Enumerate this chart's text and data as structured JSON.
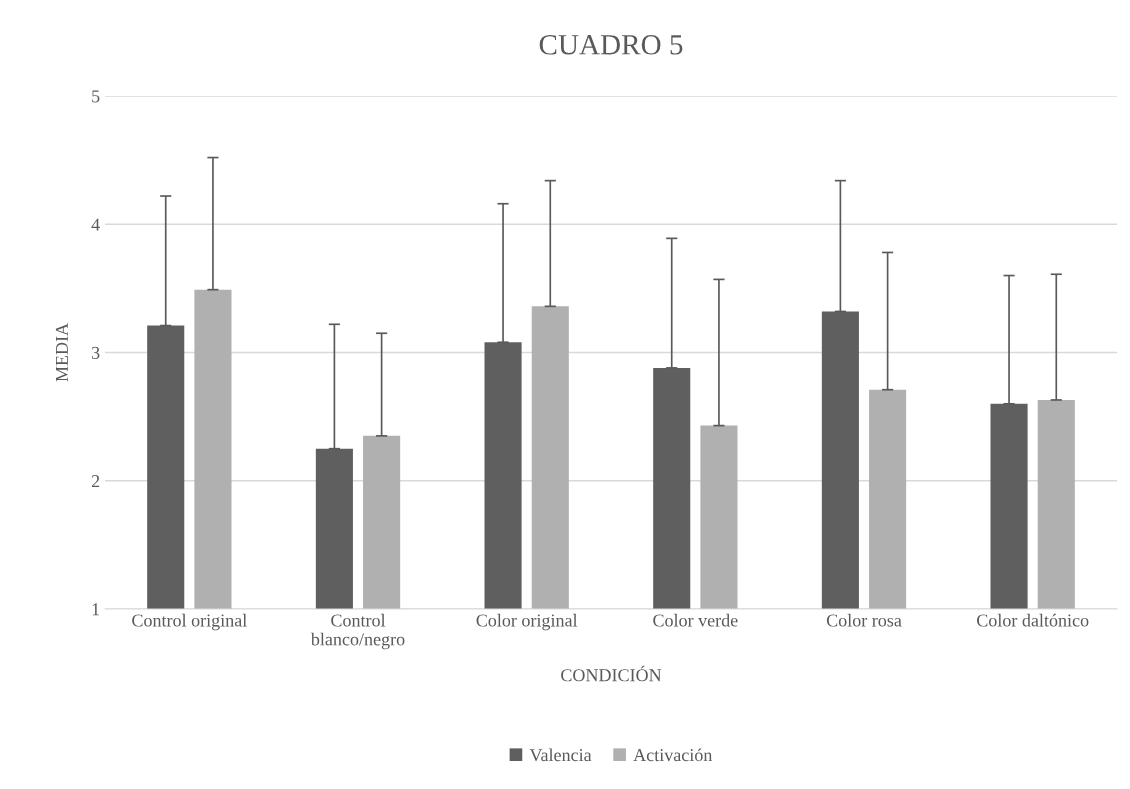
{
  "chart_data": {
    "type": "bar",
    "title": "CUADRO 5",
    "xlabel": "CONDICIÓN",
    "ylabel": "MEDIA",
    "categories": [
      "Control original",
      "Control\nblanco/negro",
      "Color original",
      "Color verde",
      "Color rosa",
      "Color daltónico"
    ],
    "series": [
      {
        "name": "Valencia",
        "color": "#5f5f5f",
        "values": [
          3.21,
          2.25,
          3.08,
          2.88,
          3.32,
          2.6
        ],
        "errors": [
          [
            3.21,
            4.22
          ],
          [
            2.25,
            3.22
          ],
          [
            3.08,
            4.16
          ],
          [
            2.88,
            3.89
          ],
          [
            3.32,
            4.34
          ],
          [
            2.6,
            3.6
          ]
        ]
      },
      {
        "name": "Activación",
        "color": "#b0b0b0",
        "values": [
          3.49,
          2.35,
          3.36,
          2.43,
          2.71,
          2.63
        ],
        "errors": [
          [
            3.49,
            4.52
          ],
          [
            2.35,
            3.15
          ],
          [
            3.36,
            4.34
          ],
          [
            2.43,
            3.57
          ],
          [
            2.71,
            3.78
          ],
          [
            2.63,
            3.61
          ]
        ]
      }
    ],
    "ylim": [
      1,
      5
    ],
    "yticks": [
      1,
      2,
      3,
      4,
      5
    ],
    "grid": "y",
    "legend": "bottom"
  }
}
